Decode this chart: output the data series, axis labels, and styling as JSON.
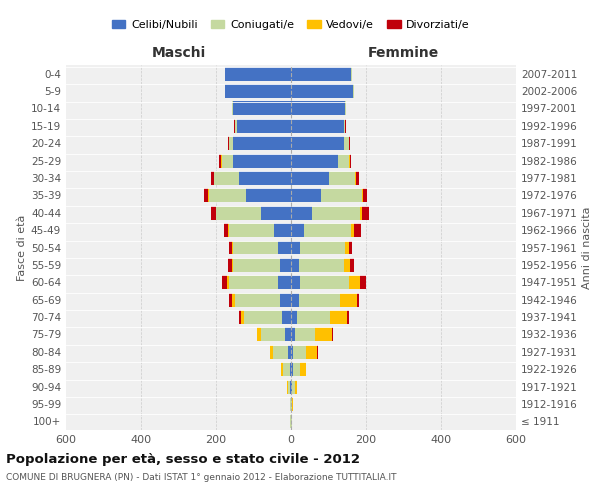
{
  "age_groups": [
    "100+",
    "95-99",
    "90-94",
    "85-89",
    "80-84",
    "75-79",
    "70-74",
    "65-69",
    "60-64",
    "55-59",
    "50-54",
    "45-49",
    "40-44",
    "35-39",
    "30-34",
    "25-29",
    "20-24",
    "15-19",
    "10-14",
    "5-9",
    "0-4"
  ],
  "birth_years": [
    "≤ 1911",
    "1912-1916",
    "1917-1921",
    "1922-1926",
    "1927-1931",
    "1932-1936",
    "1937-1941",
    "1942-1946",
    "1947-1951",
    "1952-1956",
    "1957-1961",
    "1962-1966",
    "1967-1971",
    "1972-1976",
    "1977-1981",
    "1982-1986",
    "1987-1991",
    "1992-1996",
    "1997-2001",
    "2002-2006",
    "2007-2011"
  ],
  "maschi": {
    "celibi": [
      1,
      1,
      2,
      4,
      8,
      15,
      25,
      30,
      35,
      30,
      35,
      45,
      80,
      120,
      140,
      155,
      155,
      145,
      155,
      175,
      175
    ],
    "coniugati": [
      1,
      2,
      6,
      18,
      40,
      65,
      100,
      120,
      130,
      125,
      120,
      120,
      120,
      100,
      65,
      30,
      10,
      5,
      2,
      2,
      2
    ],
    "vedovi": [
      0,
      0,
      2,
      4,
      8,
      10,
      8,
      8,
      5,
      3,
      2,
      2,
      1,
      1,
      1,
      1,
      0,
      0,
      0,
      0,
      0
    ],
    "divorziati": [
      0,
      0,
      0,
      1,
      1,
      2,
      5,
      8,
      15,
      10,
      8,
      12,
      12,
      12,
      8,
      5,
      2,
      1,
      0,
      0,
      0
    ]
  },
  "femmine": {
    "nubili": [
      1,
      1,
      2,
      4,
      5,
      10,
      15,
      20,
      25,
      22,
      25,
      35,
      55,
      80,
      100,
      125,
      140,
      140,
      145,
      165,
      160
    ],
    "coniugate": [
      1,
      2,
      8,
      20,
      35,
      55,
      90,
      110,
      130,
      120,
      120,
      125,
      130,
      110,
      70,
      30,
      15,
      5,
      2,
      2,
      2
    ],
    "vedove": [
      0,
      1,
      5,
      15,
      30,
      45,
      45,
      45,
      30,
      15,
      10,
      8,
      5,
      3,
      2,
      1,
      0,
      0,
      0,
      0,
      0
    ],
    "divorziate": [
      0,
      0,
      0,
      2,
      2,
      3,
      5,
      5,
      15,
      10,
      8,
      18,
      18,
      10,
      8,
      5,
      2,
      1,
      0,
      0,
      0
    ]
  },
  "colors": {
    "celibi_nubili": "#4472c4",
    "coniugati_e": "#c5d9a0",
    "vedovi_e": "#ffc000",
    "divorziati_e": "#c0000b"
  },
  "xlim": 600,
  "title": "Popolazione per età, sesso e stato civile - 2012",
  "subtitle": "COMUNE DI BRUGNERA (PN) - Dati ISTAT 1° gennaio 2012 - Elaborazione TUTTITALIA.IT",
  "ylabel_left": "Fasce di età",
  "ylabel_right": "Anni di nascita",
  "xlabel_left": "Maschi",
  "xlabel_right": "Femmine",
  "bg_color": "#f0f0f0"
}
